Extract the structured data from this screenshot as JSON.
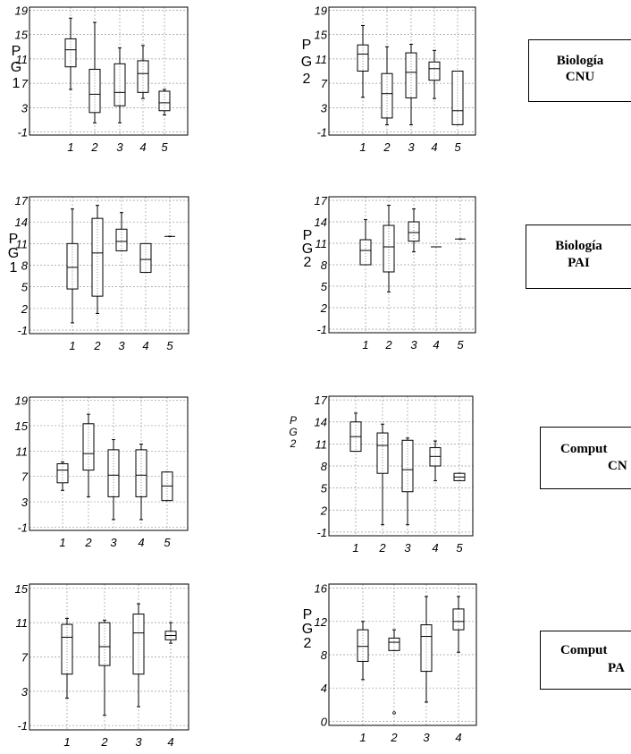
{
  "groups": [
    {
      "line1": "Biología",
      "line2": "CNU"
    },
    {
      "line1": "Biología",
      "line2": "PAI"
    },
    {
      "line1": "Comput",
      "line2": "CN"
    },
    {
      "line1": "Comput",
      "line2": "PA"
    }
  ],
  "chart_data": [
    {
      "type": "box",
      "ylabel": [
        "P",
        "G",
        "1"
      ],
      "yticks": [
        -1,
        3,
        7,
        11,
        15,
        19
      ],
      "ylim": [
        -1.5,
        19.5
      ],
      "categories": [
        "1",
        "2",
        "3",
        "4",
        "5"
      ],
      "boxes": [
        {
          "min": 6,
          "q1": 9.7,
          "median": 12.5,
          "q3": 14.3,
          "max": 17.7
        },
        {
          "min": 0.5,
          "q1": 2.2,
          "median": 5.2,
          "q3": 9.3,
          "max": 17
        },
        {
          "min": 0.5,
          "q1": 3.3,
          "median": 5.5,
          "q3": 10.2,
          "max": 12.8
        },
        {
          "min": 4.5,
          "q1": 5.5,
          "median": 8.6,
          "q3": 10.7,
          "max": 13.2
        },
        {
          "min": 1.8,
          "q1": 2.5,
          "median": 3.8,
          "q3": 5.7,
          "max": 6
        }
      ],
      "outliers": []
    },
    {
      "type": "box",
      "ylabel": [
        "P",
        "G",
        "2"
      ],
      "yticks": [
        -1,
        3,
        7,
        11,
        15,
        19
      ],
      "ylim": [
        -1.5,
        19.5
      ],
      "categories": [
        "1",
        "2",
        "3",
        "4",
        "5"
      ],
      "boxes": [
        {
          "min": 4.7,
          "q1": 9,
          "median": 11.8,
          "q3": 13.3,
          "max": 16.5
        },
        {
          "min": 0.2,
          "q1": 1.3,
          "median": 5.3,
          "q3": 8.6,
          "max": 13
        },
        {
          "min": 0.2,
          "q1": 4.6,
          "median": 8.8,
          "q3": 12,
          "max": 13.4
        },
        {
          "min": 4.5,
          "q1": 7.5,
          "median": 9.4,
          "q3": 10.5,
          "max": 12.4
        },
        {
          "min": 0.2,
          "q1": 0.2,
          "median": 2.5,
          "q3": 9,
          "max": 9
        }
      ],
      "outliers": []
    },
    {
      "type": "box",
      "ylabel": [
        "P",
        "G",
        "1"
      ],
      "yticks": [
        -1,
        2,
        5,
        8,
        11,
        14,
        17
      ],
      "ylim": [
        -1.5,
        17.5
      ],
      "categories": [
        "1",
        "2",
        "3",
        "4",
        "5"
      ],
      "boxes": [
        {
          "min": 0,
          "q1": 4.7,
          "median": 7.7,
          "q3": 11,
          "max": 15.8
        },
        {
          "min": 1.3,
          "q1": 3.7,
          "median": 9.7,
          "q3": 14.5,
          "max": 16.3
        },
        {
          "min": 10,
          "q1": 10,
          "median": 11.3,
          "q3": 13,
          "max": 15.3
        },
        {
          "min": 7,
          "q1": 7,
          "median": 8.8,
          "q3": 11,
          "max": 11
        },
        {
          "min": 12,
          "q1": 12,
          "median": 12,
          "q3": 12,
          "max": 12
        }
      ],
      "outliers": []
    },
    {
      "type": "box",
      "ylabel": [
        "P",
        "G",
        "2"
      ],
      "yticks": [
        -1,
        2,
        5,
        8,
        11,
        14,
        17
      ],
      "ylim": [
        -1.5,
        17.5
      ],
      "categories": [
        "1",
        "2",
        "3",
        "4",
        "5"
      ],
      "boxes": [
        {
          "min": 8,
          "q1": 8,
          "median": 10,
          "q3": 11.5,
          "max": 14.3
        },
        {
          "min": 4.2,
          "q1": 7,
          "median": 10.5,
          "q3": 13.5,
          "max": 16.3
        },
        {
          "min": 9.8,
          "q1": 11.3,
          "median": 12.5,
          "q3": 14,
          "max": 15.8
        },
        {
          "min": 10.5,
          "q1": 10.5,
          "median": 10.5,
          "q3": 10.5,
          "max": 10.5
        },
        {
          "min": 11.6,
          "q1": 11.6,
          "median": 11.6,
          "q3": 11.6,
          "max": 11.6
        }
      ],
      "outliers": []
    },
    {
      "type": "box",
      "ylabel": [],
      "yticks": [
        -1,
        3,
        7,
        11,
        15,
        19
      ],
      "ylim": [
        -1.5,
        19.5
      ],
      "categories": [
        "1",
        "2",
        "3",
        "4",
        "5"
      ],
      "boxes": [
        {
          "min": 4.8,
          "q1": 6,
          "median": 8,
          "q3": 9,
          "max": 9.3
        },
        {
          "min": 3.8,
          "q1": 8,
          "median": 10.6,
          "q3": 15.3,
          "max": 16.8
        },
        {
          "min": 0.2,
          "q1": 3.8,
          "median": 7.2,
          "q3": 11.2,
          "max": 12.8
        },
        {
          "min": 0.2,
          "q1": 3.8,
          "median": 7.2,
          "q3": 11.2,
          "max": 12.1
        },
        {
          "min": 3.2,
          "q1": 3.2,
          "median": 5.5,
          "q3": 7.7,
          "max": 7.7
        }
      ],
      "outliers": []
    },
    {
      "type": "box",
      "ylabel": [
        "P",
        "G",
        "2"
      ],
      "yticks": [
        -1,
        2,
        5,
        8,
        11,
        14,
        17
      ],
      "ylim": [
        -1.5,
        17.5
      ],
      "categories": [
        "1",
        "2",
        "3",
        "4",
        "5"
      ],
      "boxes": [
        {
          "min": 10,
          "q1": 10,
          "median": 12,
          "q3": 14,
          "max": 15.2
        },
        {
          "min": 0,
          "q1": 7,
          "median": 10.8,
          "q3": 12.5,
          "max": 13.7
        },
        {
          "min": 0,
          "q1": 4.5,
          "median": 7.5,
          "q3": 11.5,
          "max": 11.8
        },
        {
          "min": 6,
          "q1": 8,
          "median": 9.3,
          "q3": 10.5,
          "max": 11.4
        },
        {
          "min": 6,
          "q1": 6,
          "median": 6.5,
          "q3": 7,
          "max": 7
        }
      ],
      "outliers": []
    },
    {
      "type": "box",
      "ylabel": [],
      "yticks": [
        -1,
        3,
        7,
        11,
        15
      ],
      "ylim": [
        -1.5,
        15.5
      ],
      "categories": [
        "1",
        "2",
        "3",
        "4"
      ],
      "boxes": [
        {
          "min": 2.2,
          "q1": 5,
          "median": 9.3,
          "q3": 10.8,
          "max": 11.5
        },
        {
          "min": 0.2,
          "q1": 6,
          "median": 8.2,
          "q3": 11,
          "max": 11.3
        },
        {
          "min": 1.2,
          "q1": 5,
          "median": 9.8,
          "q3": 12,
          "max": 13.2
        },
        {
          "min": 8.6,
          "q1": 9,
          "median": 9.5,
          "q3": 10,
          "max": 11
        }
      ],
      "outliers": []
    },
    {
      "type": "box",
      "ylabel": [
        "P",
        "G",
        "2"
      ],
      "yticks": [
        0,
        4,
        8,
        12,
        16
      ],
      "ylim": [
        -0.5,
        16.5
      ],
      "categories": [
        "1",
        "2",
        "3",
        "4"
      ],
      "boxes": [
        {
          "min": 5,
          "q1": 7.2,
          "median": 9,
          "q3": 11,
          "max": 12
        },
        {
          "min": 8.5,
          "q1": 8.5,
          "median": 9.5,
          "q3": 10,
          "max": 11
        },
        {
          "min": 2.3,
          "q1": 6,
          "median": 10.2,
          "q3": 11.6,
          "max": 15
        },
        {
          "min": 8.3,
          "q1": 11,
          "median": 12,
          "q3": 13.5,
          "max": 15
        }
      ],
      "outliers": [
        [],
        [
          1
        ],
        [],
        []
      ]
    }
  ]
}
